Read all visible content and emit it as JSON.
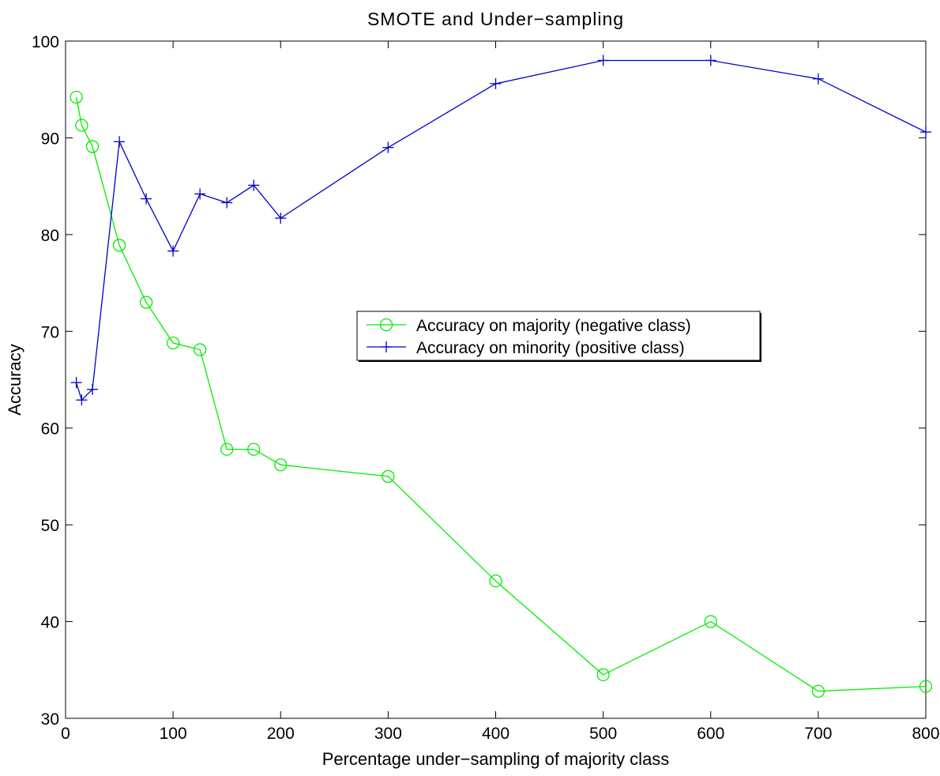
{
  "chart_data": {
    "type": "line",
    "title": "SMOTE and Under−sampling",
    "xlabel": "Percentage under−sampling of majority class",
    "ylabel": "Accuracy",
    "xlim": [
      0,
      800
    ],
    "ylim": [
      30,
      100
    ],
    "x_ticks": [
      0,
      100,
      200,
      300,
      400,
      500,
      600,
      700,
      800
    ],
    "y_ticks": [
      30,
      40,
      50,
      60,
      70,
      80,
      90,
      100
    ],
    "grid": false,
    "legend_position": "center-right",
    "series": [
      {
        "name": "Accuracy on majority (negative class)",
        "color": "#00ee00",
        "marker": "circle",
        "x": [
          10,
          15,
          25,
          50,
          75,
          100,
          125,
          150,
          175,
          200,
          300,
          400,
          500,
          600,
          700,
          800
        ],
        "y": [
          94.2,
          91.3,
          89.1,
          78.9,
          73.0,
          68.8,
          68.1,
          57.8,
          57.8,
          56.2,
          55.0,
          44.2,
          34.5,
          40.0,
          32.8,
          33.3
        ]
      },
      {
        "name": "Accuracy on minority (positive class)",
        "color": "#0000cc",
        "marker": "plus",
        "x": [
          10,
          15,
          25,
          50,
          75,
          100,
          125,
          150,
          175,
          200,
          300,
          400,
          500,
          600,
          700,
          800
        ],
        "y": [
          64.7,
          62.9,
          64.0,
          89.6,
          83.7,
          78.3,
          84.2,
          83.3,
          85.1,
          81.7,
          89.0,
          95.6,
          98.0,
          98.0,
          96.1,
          90.6
        ]
      }
    ]
  }
}
